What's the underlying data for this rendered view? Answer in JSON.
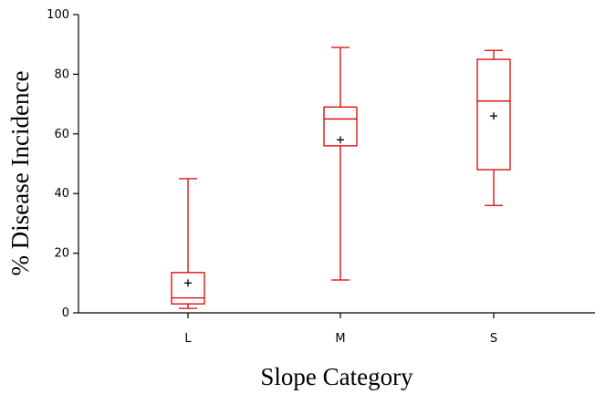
{
  "chart_data": {
    "type": "box",
    "title": "",
    "xlabel": "Slope Category",
    "ylabel": "% Disease Incidence",
    "y_tick_labels": [
      "0",
      "20",
      "40",
      "60",
      "80",
      "100"
    ],
    "y_ticks": [
      0,
      20,
      40,
      60,
      80,
      100
    ],
    "ylim": [
      0,
      100
    ],
    "grid": false,
    "box_color": "#dd0000",
    "mean_marker": "+",
    "categories": [
      "L",
      "M",
      "S"
    ],
    "boxes": [
      {
        "category": "L",
        "min": 1.5,
        "q1": 3,
        "median": 5,
        "q3": 13.5,
        "max": 45,
        "mean": 10
      },
      {
        "category": "M",
        "min": 11,
        "q1": 56,
        "median": 65,
        "q3": 69,
        "max": 89,
        "mean": 58
      },
      {
        "category": "S",
        "min": 36,
        "q1": 48,
        "median": 71,
        "q3": 85,
        "max": 88,
        "mean": 66
      }
    ]
  }
}
